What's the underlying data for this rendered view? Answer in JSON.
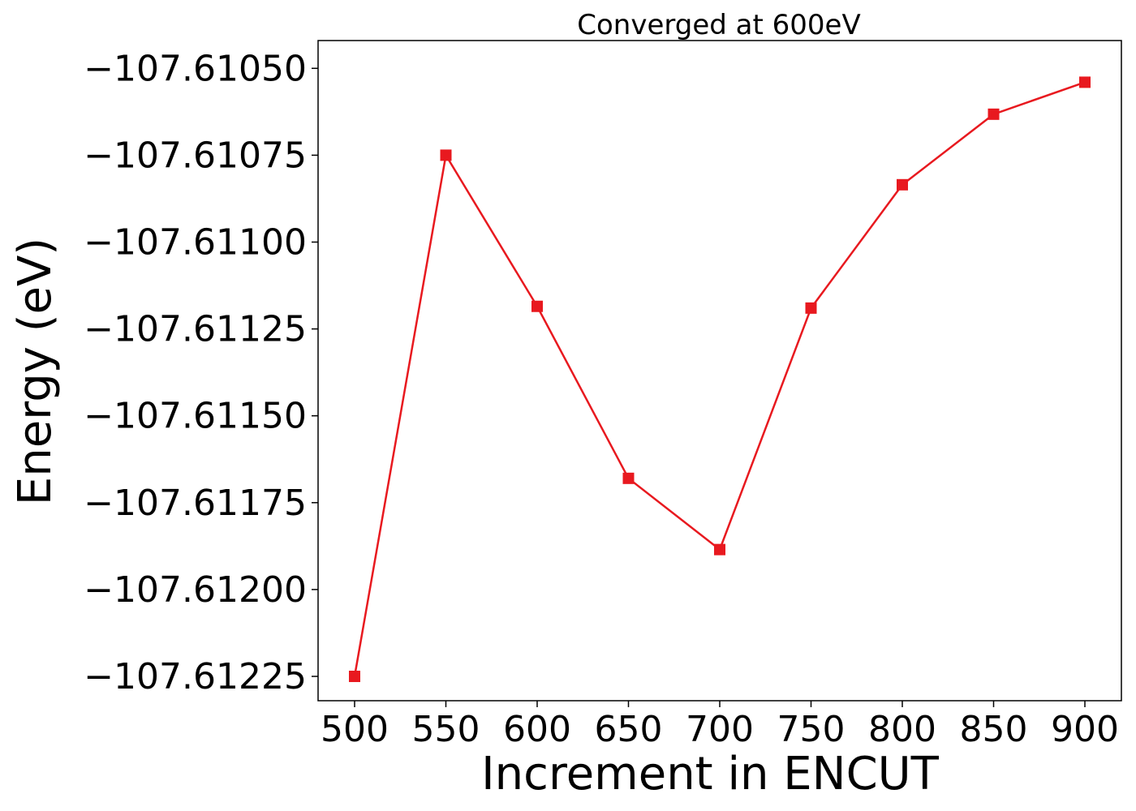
{
  "chart_data": {
    "type": "line",
    "title": "Converged at 600eV",
    "xlabel": "Increment in ENCUT",
    "ylabel": "Energy (eV)",
    "x": [
      500,
      550,
      600,
      650,
      700,
      750,
      800,
      850,
      900
    ],
    "series": [
      {
        "values": [
          -107.61225,
          -107.61075,
          -107.611185,
          -107.61168,
          -107.611885,
          -107.61119,
          -107.610835,
          -107.610632,
          -107.61054
        ],
        "color": "#e8191f",
        "marker": "square"
      }
    ],
    "xticks": [
      500,
      550,
      600,
      650,
      700,
      750,
      800,
      850,
      900
    ],
    "xtick_labels": [
      "500",
      "550",
      "600",
      "650",
      "700",
      "750",
      "800",
      "850",
      "900"
    ],
    "yticks": [
      -107.6105,
      -107.61075,
      -107.611,
      -107.61125,
      -107.6115,
      -107.61175,
      -107.612,
      -107.61225
    ],
    "ytick_labels": [
      "−107.61050",
      "−107.61075",
      "−107.61100",
      "−107.61125",
      "−107.61150",
      "−107.61175",
      "−107.61200",
      "−107.61225"
    ],
    "xlim": [
      480,
      920
    ],
    "ylim": [
      -107.61232,
      -107.61042
    ],
    "grid": false,
    "legend": "none"
  }
}
